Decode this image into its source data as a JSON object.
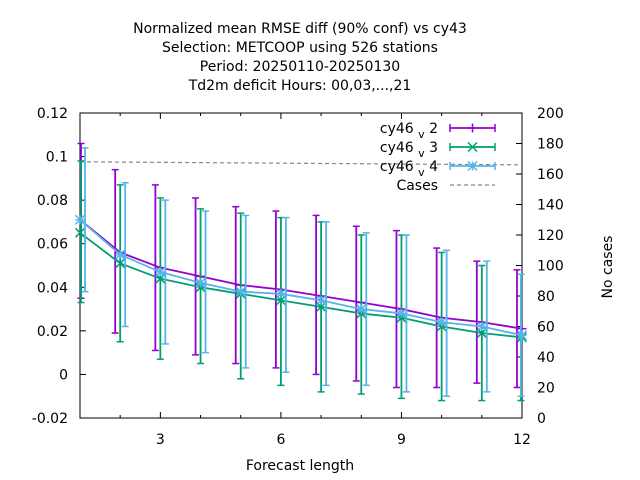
{
  "chart_data": {
    "type": "line",
    "title_lines": [
      "Normalized mean RMSE diff (90% conf) vs cy43",
      "Selection: METCOOP using   526 stations",
      "Period: 20250110-20250130",
      "Td2m deficit   Hours:  00,03,...,21"
    ],
    "xlabel": "Forecast length",
    "ylabel": "",
    "y2label": "No cases",
    "xlim": [
      1,
      12
    ],
    "ylim": [
      -0.02,
      0.12
    ],
    "y2lim": [
      0,
      200
    ],
    "x_ticks": [
      3,
      6,
      9,
      12
    ],
    "y_ticks": [
      -0.02,
      0,
      0.02,
      0.04,
      0.06,
      0.08,
      0.1,
      0.12
    ],
    "y_tick_labels": [
      "-0.02",
      "0",
      "0.02",
      "0.04",
      "0.06",
      "0.08",
      "0.1",
      "0.12"
    ],
    "y2_ticks": [
      0,
      20,
      40,
      60,
      80,
      100,
      120,
      140,
      160,
      180,
      200
    ],
    "legend_placement": "top-right",
    "series": [
      {
        "name": "cy46_v2",
        "name_main": "cy46",
        "name_sub": "v",
        "name_suffix": "2",
        "color": "#9400d3",
        "marker": "plus",
        "x": [
          1,
          2,
          3,
          4,
          5,
          6,
          7,
          8,
          9,
          10,
          11,
          12
        ],
        "y": [
          0.071,
          0.056,
          0.049,
          0.045,
          0.041,
          0.039,
          0.036,
          0.033,
          0.03,
          0.026,
          0.024,
          0.021
        ],
        "err_low": [
          0.035,
          0.019,
          0.011,
          0.009,
          0.005,
          0.003,
          0.0,
          -0.003,
          -0.006,
          -0.006,
          -0.004,
          -0.006
        ],
        "err_high": [
          0.106,
          0.094,
          0.087,
          0.081,
          0.077,
          0.075,
          0.073,
          0.068,
          0.066,
          0.058,
          0.052,
          0.048
        ]
      },
      {
        "name": "cy46_v3",
        "name_main": "cy46",
        "name_sub": "v",
        "name_suffix": "3",
        "color": "#009e73",
        "marker": "cross",
        "x": [
          1,
          2,
          3,
          4,
          5,
          6,
          7,
          8,
          9,
          10,
          11,
          12
        ],
        "y": [
          0.065,
          0.051,
          0.044,
          0.04,
          0.037,
          0.034,
          0.031,
          0.028,
          0.026,
          0.022,
          0.019,
          0.017
        ],
        "err_low": [
          0.033,
          0.015,
          0.007,
          0.005,
          -0.002,
          -0.005,
          -0.008,
          -0.009,
          -0.011,
          -0.012,
          -0.012,
          -0.012
        ],
        "err_high": [
          0.098,
          0.087,
          0.081,
          0.076,
          0.074,
          0.072,
          0.07,
          0.064,
          0.064,
          0.056,
          0.05,
          0.046
        ]
      },
      {
        "name": "cy46_v4",
        "name_main": "cy46",
        "name_sub": "v",
        "name_suffix": "4",
        "color": "#56b4e9",
        "marker": "star",
        "x": [
          1,
          2,
          3,
          4,
          5,
          6,
          7,
          8,
          9,
          10,
          11,
          12
        ],
        "y": [
          0.071,
          0.055,
          0.047,
          0.042,
          0.038,
          0.037,
          0.034,
          0.03,
          0.028,
          0.024,
          0.022,
          0.018
        ],
        "err_low": [
          0.038,
          0.022,
          0.014,
          0.01,
          0.003,
          0.001,
          -0.005,
          -0.005,
          -0.008,
          -0.01,
          -0.008,
          -0.01
        ],
        "err_high": [
          0.104,
          0.088,
          0.08,
          0.075,
          0.073,
          0.072,
          0.07,
          0.065,
          0.064,
          0.057,
          0.052,
          0.046
        ]
      }
    ],
    "cases": {
      "name": "Cases",
      "color": "#888888",
      "dash": true,
      "x": [
        1,
        12
      ],
      "y2": [
        168,
        166
      ]
    }
  }
}
